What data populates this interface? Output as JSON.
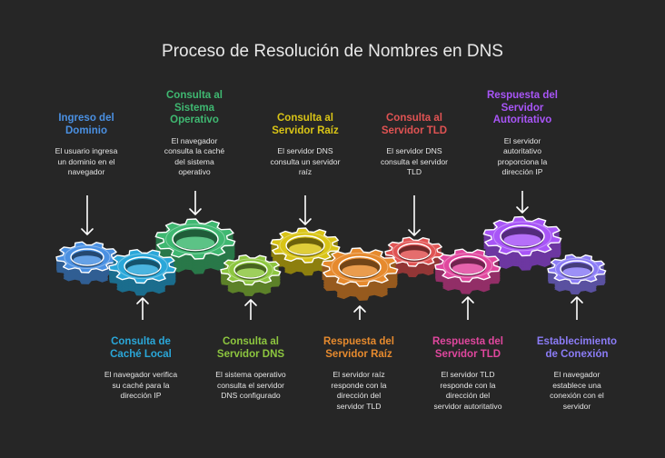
{
  "title": "Proceso de Resolución de Nombres en DNS",
  "colors": {
    "background": "#262626",
    "blue": "#4a90e2",
    "green": "#3fb871",
    "teal": "#2aa7d9",
    "lime": "#8dc63f",
    "yellow": "#d9c416",
    "orange": "#e68a2e",
    "red": "#e05353",
    "pink": "#e0479e",
    "purple": "#a855f7",
    "violet": "#8b7cf6"
  },
  "steps": [
    {
      "id": "ingreso",
      "title": "Ingreso del Dominio",
      "title_lines": [
        "Ingreso del",
        "Dominio"
      ],
      "desc_lines": [
        "El usuario ingresa",
        "un dominio en el",
        "navegador"
      ]
    },
    {
      "id": "cache",
      "title": "Consulta de Caché Local",
      "title_lines": [
        "Consulta de",
        "Caché Local"
      ],
      "desc_lines": [
        "El navegador verifica",
        "su caché para la",
        "dirección IP"
      ]
    },
    {
      "id": "so",
      "title": "Consulta al Sistema Operativo",
      "title_lines": [
        "Consulta al",
        "Sistema",
        "Operativo"
      ],
      "desc_lines": [
        "El navegador",
        "consulta la caché",
        "del sistema",
        "operativo"
      ]
    },
    {
      "id": "dns",
      "title": "Consulta al Servidor DNS",
      "title_lines": [
        "Consulta al",
        "Servidor DNS"
      ],
      "desc_lines": [
        "El sistema operativo",
        "consulta el servidor",
        "DNS configurado"
      ]
    },
    {
      "id": "raiz",
      "title": "Consulta al Servidor Raíz",
      "title_lines": [
        "Consulta al",
        "Servidor Raíz"
      ],
      "desc_lines": [
        "El servidor DNS",
        "consulta un servidor",
        "raíz"
      ]
    },
    {
      "id": "resp_raiz",
      "title": "Respuesta del Servidor Raíz",
      "title_lines": [
        "Respuesta del",
        "Servidor Raíz"
      ],
      "desc_lines": [
        "El servidor raíz",
        "responde con la",
        "dirección del",
        "servidor TLD"
      ]
    },
    {
      "id": "tld",
      "title": "Consulta al Servidor TLD",
      "title_lines": [
        "Consulta al",
        "Servidor TLD"
      ],
      "desc_lines": [
        "El servidor DNS",
        "consulta el servidor",
        "TLD"
      ]
    },
    {
      "id": "resp_tld",
      "title": "Respuesta del Servidor TLD",
      "title_lines": [
        "Respuesta del",
        "Servidor TLD"
      ],
      "desc_lines": [
        "El servidor TLD",
        "responde con la",
        "dirección del",
        "servidor autoritativo"
      ]
    },
    {
      "id": "resp_aut",
      "title": "Respuesta del Servidor Autoritativo",
      "title_lines": [
        "Respuesta del",
        "Servidor",
        "Autoritativo"
      ],
      "desc_lines": [
        "El servidor",
        "autoritativo",
        "proporciona la",
        "dirección IP"
      ]
    },
    {
      "id": "conexion",
      "title": "Establecimiento de Conexión",
      "title_lines": [
        "Establecimiento",
        "de Conexión"
      ],
      "desc_lines": [
        "El navegador",
        "establece una",
        "conexión con el",
        "servidor"
      ]
    }
  ]
}
